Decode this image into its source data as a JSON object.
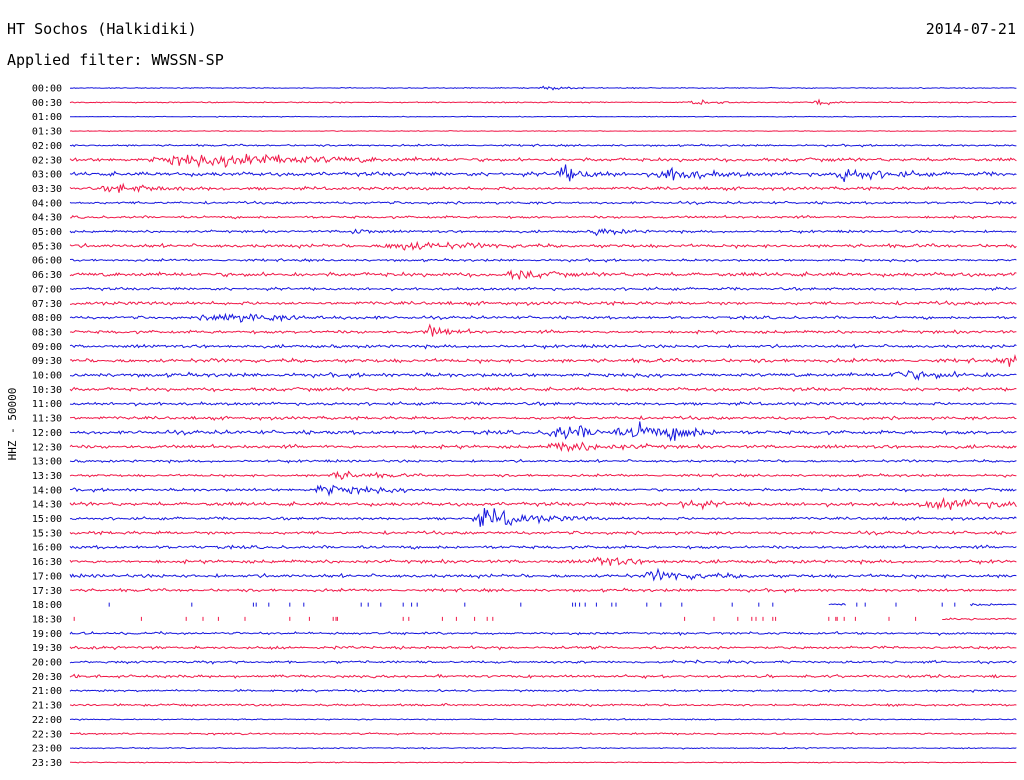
{
  "header": {
    "station": "HT Sochos (Halkidiki)",
    "date": "2014-07-21",
    "filter": "Applied filter: WWSSN-SP"
  },
  "colors": {
    "blue": "#1616dd",
    "red": "#f01848",
    "background": "#ffffff",
    "text": "#000000"
  },
  "chart_data": {
    "type": "line",
    "title": "HT Sochos (Halkidiki)",
    "ylabel": "HHZ - 50000",
    "xlabel": "",
    "grid": false,
    "legend": "none",
    "trace_minutes": 30,
    "row_labels": [
      "00:00",
      "00:30",
      "01:00",
      "01:30",
      "02:00",
      "02:30",
      "03:00",
      "03:30",
      "04:00",
      "04:30",
      "05:00",
      "05:30",
      "06:00",
      "06:30",
      "07:00",
      "07:30",
      "08:00",
      "08:30",
      "09:00",
      "09:30",
      "10:00",
      "10:30",
      "11:00",
      "11:30",
      "12:00",
      "12:30",
      "13:00",
      "13:30",
      "14:00",
      "14:30",
      "15:00",
      "15:30",
      "16:00",
      "16:30",
      "17:00",
      "17:30",
      "18:00",
      "18:30",
      "19:00",
      "19:30",
      "20:00",
      "20:30",
      "21:00",
      "21:30",
      "22:00",
      "22:30",
      "23:00",
      "23:30"
    ],
    "row_colors": [
      "blue",
      "red"
    ],
    "noise_levels": [
      0.6,
      0.8,
      0.5,
      0.5,
      1.2,
      2.2,
      2.6,
      2.0,
      1.6,
      1.6,
      1.6,
      2.2,
      1.5,
      2.6,
      1.8,
      2.2,
      1.8,
      2.0,
      2.0,
      2.4,
      2.4,
      2.2,
      2.0,
      2.0,
      2.4,
      2.2,
      1.6,
      1.6,
      1.8,
      2.4,
      1.8,
      2.0,
      2.0,
      2.2,
      2.2,
      1.8,
      1.8,
      1.4,
      1.6,
      1.8,
      1.6,
      1.8,
      1.3,
      1.4,
      0.8,
      1.1,
      0.8,
      0.6
    ],
    "events": [
      {
        "row": 0,
        "t": 0.5,
        "amp": 4,
        "dur": 0.015
      },
      {
        "row": 1,
        "t": 0.79,
        "amp": 6,
        "dur": 0.01
      },
      {
        "row": 1,
        "t": 0.66,
        "amp": 3,
        "dur": 0.02
      },
      {
        "row": 5,
        "t": 0.12,
        "amp": 6,
        "dur": 0.1
      },
      {
        "row": 5,
        "t": 0.18,
        "amp": 7,
        "dur": 0.05
      },
      {
        "row": 6,
        "t": 0.52,
        "amp": 11,
        "dur": 0.02
      },
      {
        "row": 6,
        "t": 0.63,
        "amp": 10,
        "dur": 0.03
      },
      {
        "row": 6,
        "t": 0.82,
        "amp": 9,
        "dur": 0.03
      },
      {
        "row": 7,
        "t": 0.05,
        "amp": 5,
        "dur": 0.04
      },
      {
        "row": 10,
        "t": 0.3,
        "amp": 7,
        "dur": 0.01
      },
      {
        "row": 10,
        "t": 0.56,
        "amp": 5,
        "dur": 0.02
      },
      {
        "row": 11,
        "t": 0.35,
        "amp": 6,
        "dur": 0.05
      },
      {
        "row": 13,
        "t": 0.47,
        "amp": 7,
        "dur": 0.02
      },
      {
        "row": 16,
        "t": 0.16,
        "amp": 6,
        "dur": 0.06
      },
      {
        "row": 17,
        "t": 0.38,
        "amp": 7,
        "dur": 0.02
      },
      {
        "row": 19,
        "t": 0.99,
        "amp": 7,
        "dur": 0.01
      },
      {
        "row": 20,
        "t": 0.88,
        "amp": 6,
        "dur": 0.04
      },
      {
        "row": 24,
        "t": 0.52,
        "amp": 9,
        "dur": 0.05
      },
      {
        "row": 24,
        "t": 0.6,
        "amp": 12,
        "dur": 0.02
      },
      {
        "row": 24,
        "t": 0.64,
        "amp": 10,
        "dur": 0.02
      },
      {
        "row": 25,
        "t": 0.52,
        "amp": 7,
        "dur": 0.04
      },
      {
        "row": 27,
        "t": 0.28,
        "amp": 6,
        "dur": 0.03
      },
      {
        "row": 28,
        "t": 0.27,
        "amp": 7,
        "dur": 0.04
      },
      {
        "row": 29,
        "t": 0.65,
        "amp": 7,
        "dur": 0.02
      },
      {
        "row": 29,
        "t": 0.92,
        "amp": 6,
        "dur": 0.06
      },
      {
        "row": 30,
        "t": 0.44,
        "amp": 13,
        "dur": 0.04
      },
      {
        "row": 33,
        "t": 0.56,
        "amp": 6,
        "dur": 0.03
      },
      {
        "row": 34,
        "t": 0.62,
        "amp": 6,
        "dur": 0.04
      },
      {
        "row": 37,
        "t": 0.44,
        "amp": 8,
        "dur": 0.003
      }
    ],
    "gaps": [
      {
        "row": 36,
        "from": 0.0,
        "to": 0.8
      },
      {
        "row": 36,
        "from": 0.82,
        "to": 0.95
      },
      {
        "row": 37,
        "from": 0.0,
        "to": 0.92
      }
    ]
  }
}
